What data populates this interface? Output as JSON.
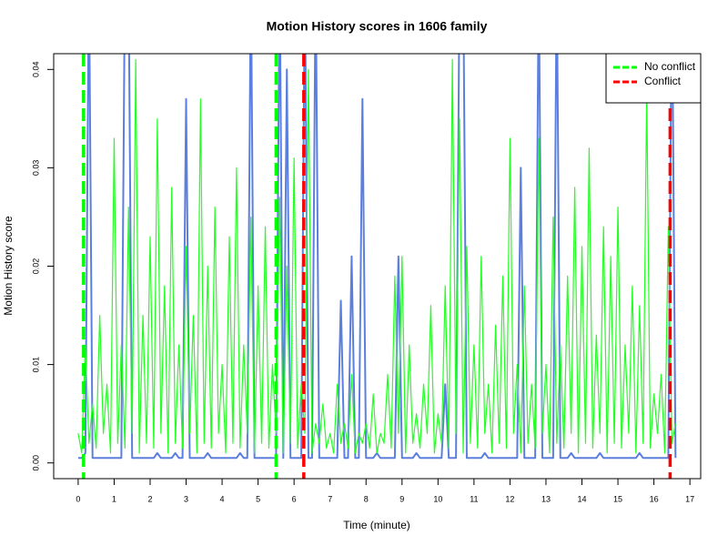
{
  "chart_data": {
    "type": "line",
    "title": "Motion History scores in 1606 family",
    "x_label": "Time (minute)",
    "y_label": "Motion History score",
    "x": [
      0,
      0.1,
      0.2,
      0.3,
      0.4,
      0.5,
      0.6,
      0.7,
      0.8,
      0.9,
      1,
      1.1,
      1.2,
      1.3,
      1.4,
      1.5,
      1.6,
      1.7,
      1.8,
      1.9,
      2,
      2.1,
      2.2,
      2.3,
      2.4,
      2.5,
      2.6,
      2.7,
      2.8,
      2.9,
      3,
      3.1,
      3.2,
      3.3,
      3.4,
      3.5,
      3.6,
      3.7,
      3.8,
      3.9,
      4,
      4.1,
      4.2,
      4.3,
      4.4,
      4.5,
      4.6,
      4.7,
      4.8,
      4.9,
      5,
      5.1,
      5.2,
      5.3,
      5.4,
      5.5,
      5.6,
      5.7,
      5.8,
      5.9,
      6,
      6.1,
      6.2,
      6.3,
      6.4,
      6.5,
      6.6,
      6.7,
      6.8,
      6.9,
      7,
      7.1,
      7.2,
      7.3,
      7.4,
      7.5,
      7.6,
      7.7,
      7.8,
      7.9,
      8,
      8.1,
      8.2,
      8.3,
      8.4,
      8.5,
      8.6,
      8.7,
      8.8,
      8.9,
      9,
      9.1,
      9.2,
      9.3,
      9.4,
      9.5,
      9.6,
      9.7,
      9.8,
      9.9,
      10,
      10.1,
      10.2,
      10.3,
      10.4,
      10.5,
      10.6,
      10.7,
      10.8,
      10.9,
      11,
      11.1,
      11.2,
      11.3,
      11.4,
      11.5,
      11.6,
      11.7,
      11.8,
      11.9,
      12,
      12.1,
      12.2,
      12.3,
      12.4,
      12.5,
      12.6,
      12.7,
      12.8,
      12.9,
      13,
      13.1,
      13.2,
      13.3,
      13.4,
      13.5,
      13.6,
      13.7,
      13.8,
      13.9,
      14,
      14.1,
      14.2,
      14.3,
      14.4,
      14.5,
      14.6,
      14.7,
      14.8,
      14.9,
      15,
      15.1,
      15.2,
      15.3,
      15.4,
      15.5,
      15.6,
      15.7,
      15.8,
      15.9,
      16,
      16.1,
      16.2,
      16.3,
      16.4,
      16.5,
      16.6
    ],
    "series": [
      {
        "color": "#5b7fde",
        "values": [
          0.0005,
          0.0005,
          0.001,
          0.05,
          0.0005,
          0.0005,
          0.0005,
          0.0005,
          0.0005,
          0.0005,
          0.0005,
          0.0005,
          0.0005,
          0.05,
          0.05,
          0.0005,
          0.0005,
          0.0005,
          0.0005,
          0.0005,
          0.0005,
          0.0005,
          0.001,
          0.0005,
          0.0005,
          0.0005,
          0.0005,
          0.001,
          0.0005,
          0.0005,
          0.037,
          0.0005,
          0.0005,
          0.0005,
          0.0005,
          0.0005,
          0.001,
          0.0005,
          0.0005,
          0.0005,
          0.0005,
          0.0005,
          0.0005,
          0.0005,
          0.0005,
          0.001,
          0.0005,
          0.0005,
          0.05,
          0.0005,
          0.0005,
          0.0005,
          0.0005,
          0.0005,
          0.0005,
          0.0005,
          0.05,
          0.0005,
          0.04,
          0.0005,
          0.0005,
          0.0005,
          0.0005,
          0.05,
          0.0005,
          0.0005,
          0.05,
          0.0005,
          0.0005,
          0.0005,
          0.0005,
          0.0005,
          0.0005,
          0.0165,
          0.0005,
          0.0005,
          0.021,
          0.0005,
          0.0005,
          0.037,
          0.0005,
          0.0005,
          0.0005,
          0.001,
          0.0005,
          0.0005,
          0.0005,
          0.0005,
          0.0005,
          0.021,
          0.0005,
          0.0005,
          0.0005,
          0.0005,
          0.001,
          0.0005,
          0.0005,
          0.0005,
          0.0005,
          0.0005,
          0.0005,
          0.0005,
          0.008,
          0.0005,
          0.0005,
          0.0005,
          0.05,
          0.05,
          0.0005,
          0.0005,
          0.0005,
          0.0005,
          0.0005,
          0.001,
          0.0005,
          0.0005,
          0.0005,
          0.0005,
          0.0005,
          0.0005,
          0.0005,
          0.0005,
          0.0005,
          0.03,
          0.0005,
          0.0005,
          0.0005,
          0.0005,
          0.05,
          0.0005,
          0.0005,
          0.0005,
          0.0005,
          0.05,
          0.0005,
          0.0005,
          0.0005,
          0.001,
          0.0005,
          0.0005,
          0.0005,
          0.0005,
          0.0005,
          0.0005,
          0.0005,
          0.001,
          0.0005,
          0.0005,
          0.0005,
          0.0005,
          0.0005,
          0.0005,
          0.0005,
          0.0005,
          0.0005,
          0.0005,
          0.001,
          0.0005,
          0.0005,
          0.0005,
          0.0005,
          0.0005,
          0.0005,
          0.0005,
          0.0005,
          0.05,
          0.0005
        ]
      },
      {
        "color": "#22ff22",
        "values": [
          0.003,
          0.001,
          0.012,
          0.002,
          0.006,
          0.0015,
          0.015,
          0.003,
          0.008,
          0.001,
          0.033,
          0.002,
          0.012,
          0.0015,
          0.026,
          0.003,
          0.041,
          0.001,
          0.015,
          0.002,
          0.023,
          0.0015,
          0.035,
          0.003,
          0.018,
          0.001,
          0.028,
          0.002,
          0.012,
          0.0015,
          0.022,
          0.003,
          0.015,
          0.001,
          0.037,
          0.002,
          0.02,
          0.0015,
          0.026,
          0.003,
          0.01,
          0.001,
          0.023,
          0.002,
          0.03,
          0.0015,
          0.012,
          0.003,
          0.025,
          0.001,
          0.018,
          0.002,
          0.024,
          0.0015,
          0.01,
          0.003,
          0.027,
          0.001,
          0.02,
          0.002,
          0.031,
          0.0015,
          0.008,
          0.003,
          0.04,
          0.001,
          0.004,
          0.002,
          0.006,
          0.0015,
          0.003,
          0.001,
          0.008,
          0.002,
          0.004,
          0.0015,
          0.009,
          0.001,
          0.003,
          0.002,
          0.004,
          0.0015,
          0.007,
          0.001,
          0.003,
          0.002,
          0.009,
          0.0015,
          0.019,
          0.003,
          0.021,
          0.001,
          0.012,
          0.002,
          0.005,
          0.0015,
          0.008,
          0.003,
          0.016,
          0.001,
          0.005,
          0.002,
          0.018,
          0.0015,
          0.041,
          0.003,
          0.035,
          0.001,
          0.022,
          0.002,
          0.012,
          0.0015,
          0.021,
          0.003,
          0.008,
          0.001,
          0.014,
          0.002,
          0.019,
          0.0015,
          0.033,
          0.003,
          0.01,
          0.001,
          0.018,
          0.002,
          0.008,
          0.0015,
          0.033,
          0.003,
          0.01,
          0.001,
          0.025,
          0.002,
          0.012,
          0.0015,
          0.019,
          0.003,
          0.028,
          0.001,
          0.022,
          0.002,
          0.032,
          0.0015,
          0.013,
          0.003,
          0.024,
          0.001,
          0.021,
          0.002,
          0.026,
          0.0015,
          0.012,
          0.003,
          0.018,
          0.001,
          0.016,
          0.002,
          0.038,
          0.0015,
          0.007,
          0.003,
          0.009,
          0.001,
          0.024,
          0.002,
          0.004
        ]
      }
    ],
    "vlines": [
      {
        "name": "No conflict",
        "color": "#00ff00",
        "x": [
          0.15,
          5.5
        ]
      },
      {
        "name": "Conflict",
        "color": "#ff0000",
        "x": [
          6.27,
          16.45
        ]
      }
    ],
    "legend": "topright",
    "xlim": [
      -0.68,
      17.3
    ],
    "ylim": [
      -0.0016,
      0.0416
    ],
    "xticks": [
      0,
      1,
      2,
      3,
      4,
      5,
      6,
      7,
      8,
      9,
      10,
      11,
      12,
      13,
      14,
      15,
      16,
      17
    ],
    "yticks": [
      {
        "value": 0,
        "label": "0.00"
      },
      {
        "value": 0.01,
        "label": "0.01"
      },
      {
        "value": 0.02,
        "label": "0.02"
      },
      {
        "value": 0.03,
        "label": "0.03"
      },
      {
        "value": 0.04,
        "label": "0.04"
      }
    ]
  }
}
